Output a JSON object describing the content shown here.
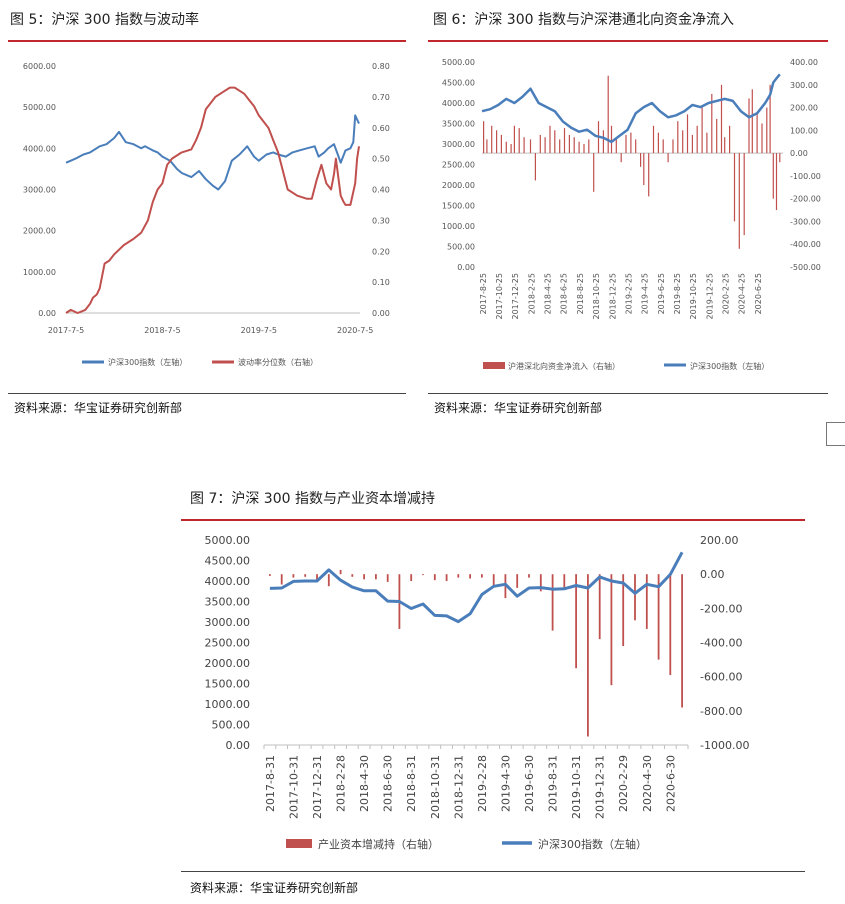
{
  "fig5": {
    "title": "图 5：沪深 300 指数与波动率",
    "source": "资料来源：华宝证券研究创新部",
    "chart_data": {
      "type": "line",
      "title": "图 5：沪深 300 指数与波动率",
      "x_tick_labels": [
        "2017-7-5",
        "2018-7-5",
        "2019-7-5",
        "2020-7-5"
      ],
      "x_tick_positions": [
        0,
        1,
        2,
        3
      ],
      "xlim": [
        0,
        3.05
      ],
      "y_left_ticks": [
        "0.00",
        "1000.00",
        "2000.00",
        "3000.00",
        "4000.00",
        "5000.00",
        "6000.00"
      ],
      "y_left_lim": [
        0,
        6000
      ],
      "y_right_ticks": [
        "0.00",
        "0.10",
        "0.20",
        "0.30",
        "0.40",
        "0.50",
        "0.60",
        "0.70",
        "0.80"
      ],
      "y_right_lim": [
        0,
        0.8
      ],
      "grid": false,
      "legend_position": "bottom",
      "series": [
        {
          "name": "沪深300指数（左轴）",
          "axis": "left",
          "color": "#4a7ebb",
          "x": [
            0,
            0.05,
            0.1,
            0.18,
            0.25,
            0.35,
            0.42,
            0.5,
            0.55,
            0.62,
            0.7,
            0.78,
            0.82,
            0.9,
            0.95,
            1.0,
            1.08,
            1.15,
            1.2,
            1.3,
            1.38,
            1.45,
            1.52,
            1.58,
            1.65,
            1.72,
            1.8,
            1.88,
            1.95,
            2.0,
            2.08,
            2.15,
            2.2,
            2.28,
            2.35,
            2.42,
            2.5,
            2.58,
            2.62,
            2.68,
            2.72,
            2.78,
            2.82,
            2.85,
            2.9,
            2.95,
            2.98,
            3.0,
            3.02,
            3.04
          ],
          "y": [
            3650,
            3700,
            3750,
            3850,
            3900,
            4050,
            4100,
            4250,
            4400,
            4150,
            4100,
            4000,
            4050,
            3950,
            3900,
            3800,
            3700,
            3500,
            3400,
            3300,
            3450,
            3250,
            3100,
            3000,
            3200,
            3700,
            3850,
            4050,
            3800,
            3700,
            3850,
            3900,
            3850,
            3800,
            3900,
            3950,
            4000,
            4050,
            3800,
            3900,
            4000,
            4100,
            3850,
            3650,
            3950,
            4000,
            4150,
            4800,
            4700,
            4600
          ]
        },
        {
          "name": "波动率分位数（右轴）",
          "axis": "right",
          "color": "#c0504d",
          "x": [
            0,
            0.05,
            0.12,
            0.2,
            0.25,
            0.28,
            0.32,
            0.35,
            0.4,
            0.45,
            0.5,
            0.6,
            0.7,
            0.78,
            0.85,
            0.9,
            0.95,
            1.0,
            1.05,
            1.1,
            1.2,
            1.3,
            1.35,
            1.4,
            1.45,
            1.5,
            1.55,
            1.6,
            1.65,
            1.7,
            1.75,
            1.8,
            1.85,
            1.9,
            1.95,
            2.0,
            2.05,
            2.1,
            2.15,
            2.2,
            2.3,
            2.4,
            2.5,
            2.55,
            2.6,
            2.65,
            2.7,
            2.75,
            2.78,
            2.8,
            2.85,
            2.88,
            2.9,
            2.95,
            3.0,
            3.02,
            3.04
          ],
          "y": [
            0.0,
            0.01,
            0.0,
            0.01,
            0.03,
            0.05,
            0.06,
            0.08,
            0.16,
            0.17,
            0.19,
            0.22,
            0.24,
            0.26,
            0.3,
            0.36,
            0.4,
            0.42,
            0.48,
            0.5,
            0.52,
            0.53,
            0.56,
            0.6,
            0.66,
            0.68,
            0.7,
            0.71,
            0.72,
            0.73,
            0.73,
            0.72,
            0.71,
            0.69,
            0.67,
            0.64,
            0.62,
            0.6,
            0.56,
            0.52,
            0.4,
            0.38,
            0.37,
            0.37,
            0.43,
            0.48,
            0.42,
            0.4,
            0.45,
            0.5,
            0.38,
            0.36,
            0.35,
            0.35,
            0.42,
            0.5,
            0.54
          ]
        }
      ]
    }
  },
  "fig6": {
    "title": "图 6：沪深 300 指数与沪深港通北向资金净流入",
    "source": "资料来源：华宝证券研究创新部",
    "chart_data": {
      "type": "bar",
      "title": "图 6：沪深 300 指数与沪深港通北向资金净流入",
      "x_tick_labels": [
        "2017-8-25",
        "2017-10-25",
        "2017-12-25",
        "2018-2-25",
        "2018-4-25",
        "2018-6-25",
        "2018-8-25",
        "2018-10-25",
        "2018-12-25",
        "2019-2-25",
        "2019-4-25",
        "2019-6-25",
        "2019-8-25",
        "2019-10-25",
        "2019-12-25",
        "2020-2-25",
        "2020-4-25",
        "2020-6-25"
      ],
      "xlim": [
        0,
        18.6
      ],
      "y_left_ticks": [
        "0.00",
        "500.00",
        "1000.00",
        "1500.00",
        "2000.00",
        "2500.00",
        "3000.00",
        "3500.00",
        "4000.00",
        "4500.00",
        "5000.00"
      ],
      "y_left_lim": [
        0,
        5000
      ],
      "y_right_ticks": [
        "-500.00",
        "-400.00",
        "-300.00",
        "-200.00",
        "-100.00",
        "0.00",
        "100.00",
        "200.00",
        "300.00",
        "400.00"
      ],
      "y_right_lim": [
        -500,
        400
      ],
      "grid": false,
      "legend_position": "bottom",
      "series": [
        {
          "name": "沪港深北向资金净流入（右轴）",
          "kind": "bar",
          "axis": "right",
          "color": "#c0504d",
          "x": [
            0.1,
            0.3,
            0.6,
            0.9,
            1.2,
            1.5,
            1.8,
            2.0,
            2.3,
            2.6,
            3.0,
            3.3,
            3.6,
            3.9,
            4.2,
            4.5,
            4.8,
            5.1,
            5.4,
            5.7,
            6.0,
            6.3,
            6.6,
            6.9,
            7.2,
            7.5,
            7.8,
            8.0,
            8.3,
            8.6,
            8.9,
            9.2,
            9.5,
            9.8,
            10.0,
            10.3,
            10.6,
            10.9,
            11.2,
            11.5,
            11.8,
            12.1,
            12.4,
            12.7,
            13.0,
            13.3,
            13.6,
            13.9,
            14.2,
            14.5,
            14.8,
            15.0,
            15.3,
            15.6,
            15.9,
            16.2,
            16.5,
            16.7,
            17.0,
            17.3,
            17.6,
            17.8,
            18.0,
            18.2,
            18.4
          ],
          "y": [
            140,
            60,
            120,
            100,
            80,
            50,
            40,
            120,
            110,
            70,
            60,
            -120,
            80,
            70,
            120,
            100,
            60,
            110,
            80,
            70,
            50,
            40,
            60,
            -170,
            140,
            100,
            340,
            120,
            60,
            -40,
            80,
            90,
            60,
            -60,
            -140,
            -190,
            120,
            90,
            60,
            -40,
            60,
            140,
            100,
            170,
            80,
            120,
            200,
            90,
            260,
            150,
            300,
            70,
            120,
            -300,
            -420,
            -360,
            240,
            280,
            180,
            130,
            200,
            300,
            -200,
            -250,
            -40
          ]
        },
        {
          "name": "沪深300指数（左轴）",
          "kind": "line",
          "axis": "left",
          "color": "#4a7ebb",
          "x": [
            0,
            0.5,
            1.0,
            1.5,
            2.0,
            2.5,
            3.0,
            3.5,
            4.0,
            4.5,
            5.0,
            5.5,
            6.0,
            6.5,
            7.0,
            7.5,
            8.0,
            8.5,
            9.0,
            9.5,
            10.0,
            10.5,
            11.0,
            11.5,
            12.0,
            12.5,
            13.0,
            13.5,
            14.0,
            14.5,
            15.0,
            15.5,
            16.0,
            16.5,
            17.0,
            17.5,
            17.8,
            18.0,
            18.2,
            18.4
          ],
          "y": [
            3800,
            3850,
            3950,
            4100,
            4000,
            4150,
            4350,
            4000,
            3900,
            3800,
            3550,
            3400,
            3300,
            3350,
            3200,
            3150,
            3050,
            3200,
            3350,
            3750,
            3900,
            4000,
            3800,
            3650,
            3700,
            3800,
            3950,
            3900,
            4000,
            4050,
            4100,
            4050,
            3800,
            3650,
            3750,
            4000,
            4200,
            4500,
            4600,
            4700
          ]
        }
      ]
    }
  },
  "fig7": {
    "title": "图 7：沪深 300 指数与产业资本增减持",
    "source": "资料来源：华宝证券研究创新部",
    "chart_data": {
      "type": "bar",
      "title": "图 7：沪深 300 指数与产业资本增减持",
      "x_tick_labels": [
        "2017-8-31",
        "2017-10-31",
        "2017-12-31",
        "2018-2-28",
        "2018-4-30",
        "2018-6-30",
        "2018-8-31",
        "2018-10-31",
        "2018-12-31",
        "2019-2-28",
        "2019-4-30",
        "2019-6-30",
        "2019-8-31",
        "2019-10-31",
        "2019-12-31",
        "2020-2-29",
        "2020-4-30",
        "2020-6-30"
      ],
      "categories": [
        "2017-8",
        "2017-9",
        "2017-10",
        "2017-11",
        "2017-12",
        "2018-1",
        "2018-2",
        "2018-3",
        "2018-4",
        "2018-5",
        "2018-6",
        "2018-7",
        "2018-8",
        "2018-9",
        "2018-10",
        "2018-11",
        "2018-12",
        "2019-1",
        "2019-2",
        "2019-3",
        "2019-4",
        "2019-5",
        "2019-6",
        "2019-7",
        "2019-8",
        "2019-9",
        "2019-10",
        "2019-11",
        "2019-12",
        "2020-1",
        "2020-2",
        "2020-3",
        "2020-4",
        "2020-5",
        "2020-6",
        "2020-7"
      ],
      "y_left_ticks": [
        "0.00",
        "500.00",
        "1000.00",
        "1500.00",
        "2000.00",
        "2500.00",
        "3000.00",
        "3500.00",
        "4000.00",
        "4500.00",
        "5000.00"
      ],
      "y_left_lim": [
        0,
        5000
      ],
      "y_right_ticks": [
        "-1000.00",
        "-800.00",
        "-600.00",
        "-400.00",
        "-200.00",
        "0.00",
        "200.00"
      ],
      "y_right_lim": [
        -1000,
        200
      ],
      "grid": false,
      "legend_position": "bottom",
      "series": [
        {
          "name": "产业资本增减持（右轴）",
          "kind": "bar",
          "axis": "right",
          "color": "#c0504d",
          "values": [
            -10,
            -60,
            -20,
            -15,
            -35,
            -70,
            25,
            -15,
            -30,
            -30,
            -45,
            -320,
            -40,
            -5,
            -35,
            -40,
            -20,
            -25,
            -20,
            -75,
            -140,
            -80,
            -20,
            -100,
            -330,
            -90,
            -550,
            -950,
            -380,
            -650,
            -420,
            -270,
            -320,
            -500,
            -590,
            -780
          ]
        },
        {
          "name": "沪深300指数（左轴）",
          "kind": "line",
          "axis": "left",
          "color": "#4a7ebb",
          "values": [
            3820,
            3830,
            3990,
            4000,
            4000,
            4270,
            4020,
            3850,
            3760,
            3760,
            3510,
            3500,
            3330,
            3440,
            3160,
            3150,
            3010,
            3200,
            3670,
            3870,
            3920,
            3630,
            3830,
            3840,
            3800,
            3810,
            3890,
            3830,
            4100,
            4000,
            3950,
            3700,
            3920,
            3860,
            4160,
            4700
          ]
        }
      ]
    }
  }
}
